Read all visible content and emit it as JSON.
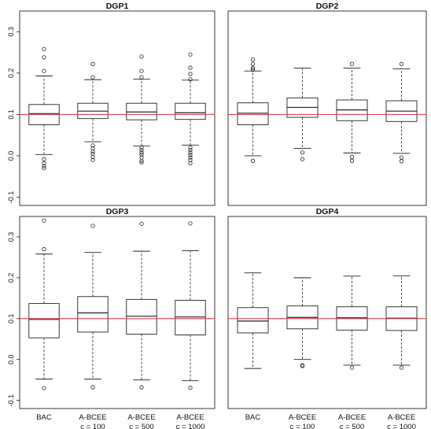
{
  "chart_data": [
    {
      "type": "boxplot",
      "title": "DGP1",
      "categories": [
        "BAC",
        "A-BCEE c = 100",
        "A-BCEE c = 500",
        "A-BCEE c = 1000"
      ],
      "ylim": [
        -0.12,
        0.35
      ],
      "yticks": [
        "-0.1",
        "0.0",
        "0.1",
        "0.2",
        "0.3"
      ],
      "reference_line": 0.1,
      "reference_color": "#e8313a",
      "show_x_labels": false,
      "show_y_axis": true,
      "boxes": [
        {
          "whisker_low": 0.003,
          "q1": 0.075,
          "median": 0.102,
          "q3": 0.124,
          "whisker_high": 0.193,
          "outliers": [
            0.258,
            0.238,
            0.205,
            -0.008,
            -0.018,
            -0.025,
            -0.03
          ]
        },
        {
          "whisker_low": 0.034,
          "q1": 0.09,
          "median": 0.108,
          "q3": 0.127,
          "whisker_high": 0.184,
          "outliers": [
            0.222,
            0.19,
            0.025,
            0.018,
            0.01,
            0.005,
            -0.003,
            -0.01
          ]
        },
        {
          "whisker_low": 0.024,
          "q1": 0.087,
          "median": 0.106,
          "q3": 0.127,
          "whisker_high": 0.185,
          "outliers": [
            0.24,
            0.205,
            0.19,
            0.02,
            0.014,
            0.008,
            0.003,
            -0.004,
            -0.012,
            -0.016
          ]
        },
        {
          "whisker_low": 0.026,
          "q1": 0.088,
          "median": 0.104,
          "q3": 0.127,
          "whisker_high": 0.183,
          "outliers": [
            0.245,
            0.213,
            0.198,
            0.185,
            0.02,
            0.014,
            0.008,
            0.002,
            -0.004,
            -0.01,
            -0.018
          ]
        }
      ]
    },
    {
      "type": "boxplot",
      "title": "DGP2",
      "categories": [
        "BAC",
        "A-BCEE c = 100",
        "A-BCEE c = 500",
        "A-BCEE c = 1000"
      ],
      "ylim": [
        -0.12,
        0.35
      ],
      "yticks": [
        "-0.1",
        "0.0",
        "0.1",
        "0.2",
        "0.3"
      ],
      "reference_line": 0.1,
      "reference_color": "#e8313a",
      "show_x_labels": false,
      "show_y_axis": false,
      "boxes": [
        {
          "whisker_low": 0.0,
          "q1": 0.075,
          "median": 0.103,
          "q3": 0.128,
          "whisker_high": 0.205,
          "outliers": [
            0.233,
            0.222,
            0.212,
            0.208,
            -0.012
          ]
        },
        {
          "whisker_low": 0.018,
          "q1": 0.093,
          "median": 0.117,
          "q3": 0.14,
          "whisker_high": 0.212,
          "outliers": [
            0.008,
            -0.008
          ]
        },
        {
          "whisker_low": 0.007,
          "q1": 0.085,
          "median": 0.111,
          "q3": 0.135,
          "whisker_high": 0.212,
          "outliers": [
            0.222,
            -0.003,
            -0.012
          ]
        },
        {
          "whisker_low": 0.006,
          "q1": 0.083,
          "median": 0.108,
          "q3": 0.133,
          "whisker_high": 0.21,
          "outliers": [
            0.222,
            -0.004,
            -0.013
          ]
        }
      ]
    },
    {
      "type": "boxplot",
      "title": "DGP3",
      "categories": [
        "BAC",
        "A-BCEE c = 100",
        "A-BCEE c = 500",
        "A-BCEE c = 1000"
      ],
      "ylim": [
        -0.12,
        0.35
      ],
      "yticks": [
        "-0.1",
        "0.0",
        "0.1",
        "0.2",
        "0.3"
      ],
      "reference_line": 0.1,
      "reference_color": "#e8313a",
      "show_x_labels": true,
      "show_y_axis": true,
      "boxes": [
        {
          "whisker_low": -0.048,
          "q1": 0.053,
          "median": 0.098,
          "q3": 0.137,
          "whisker_high": 0.258,
          "outliers": [
            0.34,
            0.27,
            -0.07
          ]
        },
        {
          "whisker_low": -0.048,
          "q1": 0.067,
          "median": 0.114,
          "q3": 0.154,
          "whisker_high": 0.262,
          "outliers": [
            0.327,
            -0.068
          ]
        },
        {
          "whisker_low": -0.05,
          "q1": 0.062,
          "median": 0.106,
          "q3": 0.147,
          "whisker_high": 0.265,
          "outliers": [
            0.332,
            -0.068
          ]
        },
        {
          "whisker_low": -0.052,
          "q1": 0.06,
          "median": 0.104,
          "q3": 0.145,
          "whisker_high": 0.266,
          "outliers": [
            0.333,
            -0.069
          ]
        }
      ]
    },
    {
      "type": "boxplot",
      "title": "DGP4",
      "categories": [
        "BAC",
        "A-BCEE c = 100",
        "A-BCEE c = 500",
        "A-BCEE c = 1000"
      ],
      "ylim": [
        -0.12,
        0.35
      ],
      "yticks": [
        "-0.1",
        "0.0",
        "0.1",
        "0.2",
        "0.3"
      ],
      "reference_line": 0.1,
      "reference_color": "#e8313a",
      "show_x_labels": true,
      "show_y_axis": false,
      "boxes": [
        {
          "whisker_low": -0.022,
          "q1": 0.065,
          "median": 0.094,
          "q3": 0.127,
          "whisker_high": 0.212,
          "outliers": []
        },
        {
          "whisker_low": 0.0,
          "q1": 0.075,
          "median": 0.103,
          "q3": 0.131,
          "whisker_high": 0.2,
          "outliers": [
            -0.014,
            -0.016
          ]
        },
        {
          "whisker_low": -0.014,
          "q1": 0.072,
          "median": 0.102,
          "q3": 0.129,
          "whisker_high": 0.204,
          "outliers": [
            -0.02
          ]
        },
        {
          "whisker_low": -0.014,
          "q1": 0.071,
          "median": 0.101,
          "q3": 0.129,
          "whisker_high": 0.205,
          "outliers": [
            -0.02
          ]
        }
      ]
    }
  ]
}
